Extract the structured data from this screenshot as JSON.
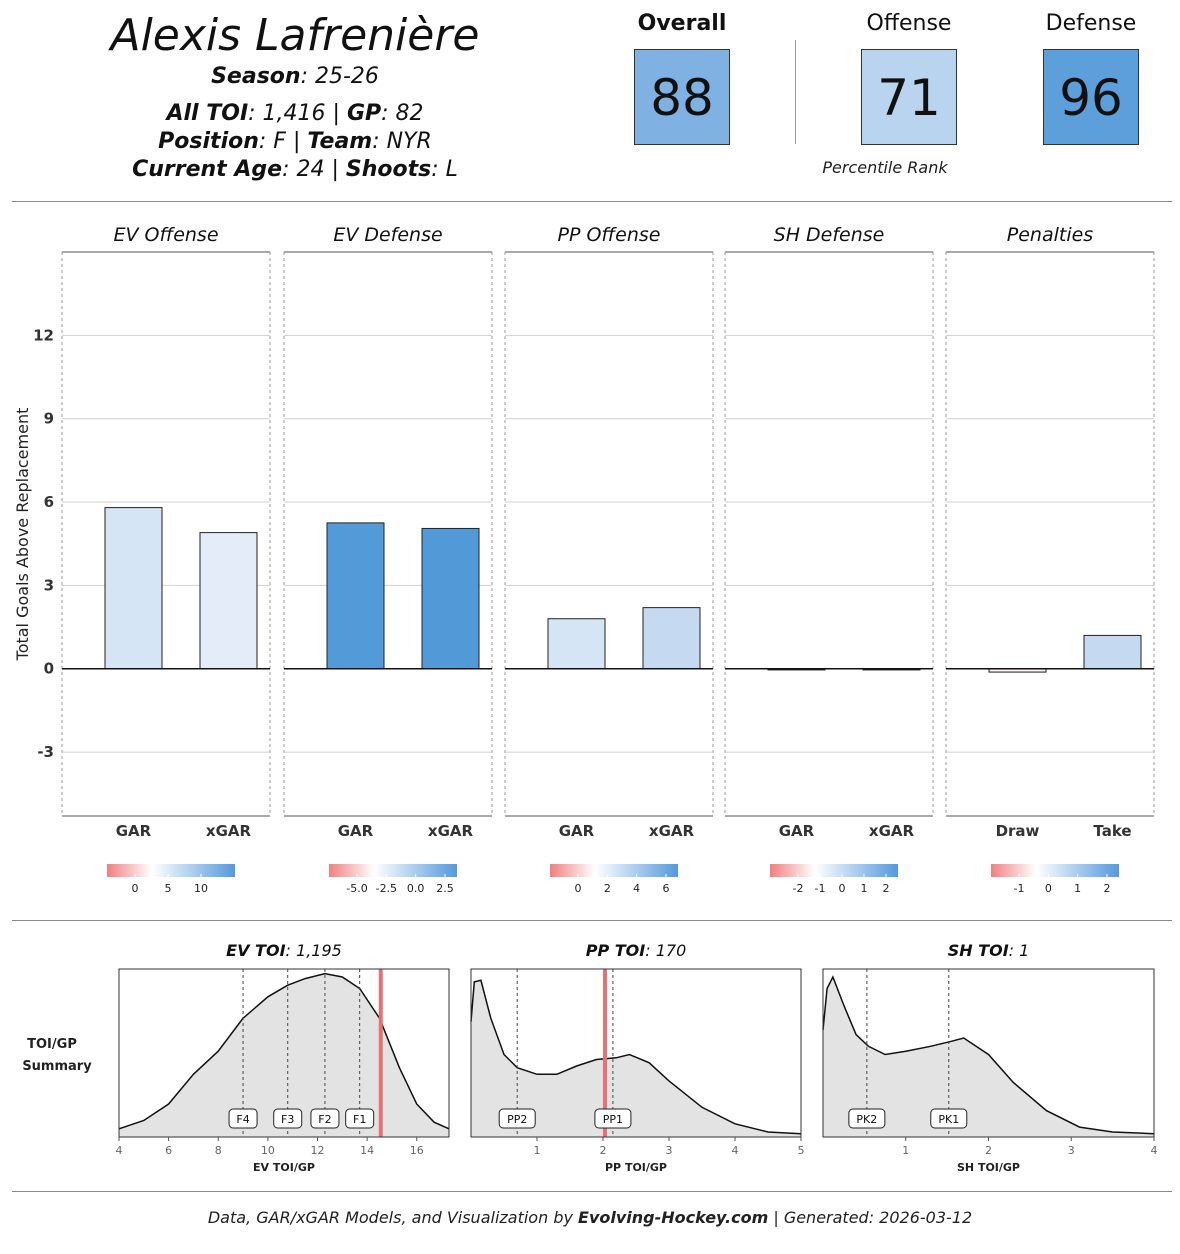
{
  "header": {
    "player_name": "Alexis Lafrenière",
    "season_label": "Season",
    "season_value": ": 25-26",
    "toi_label": "All TOI",
    "toi_value": ": 1,416 | ",
    "gp_label": "GP",
    "gp_value": ": 82",
    "position_label": "Position",
    "position_value": ": F | ",
    "team_label": "Team",
    "team_value": ": NYR",
    "age_label": "Current Age",
    "age_value": ": 24 | ",
    "shoots_label": "Shoots",
    "shoots_value": ": L"
  },
  "ratings": {
    "overall_label": "Overall",
    "overall_value": "88",
    "offense_label": "Offense",
    "offense_value": "71",
    "defense_label": "Defense",
    "defense_value": "96",
    "caption": "Percentile Rank",
    "colors": {
      "overall": "#7fb2e2",
      "offense": "#b8d4ef",
      "defense": "#5d9fdb"
    }
  },
  "chart_data": [
    {
      "type": "bar",
      "ylabel": "Total Goals Above Replacement",
      "ylim": [
        -5.3,
        15
      ],
      "yticks": [
        -3,
        0,
        3,
        6,
        9,
        12
      ],
      "grid": true,
      "panels": [
        {
          "title": "EV Offense",
          "categories": [
            "GAR",
            "xGAR"
          ],
          "values": [
            5.8,
            4.9
          ],
          "colors": [
            "#d6e5f6",
            "#e3ecf8"
          ],
          "legend": {
            "ticks": [
              "0",
              "5",
              "10"
            ]
          }
        },
        {
          "title": "EV Defense",
          "categories": [
            "GAR",
            "xGAR"
          ],
          "values": [
            5.25,
            5.05
          ],
          "colors": [
            "#529bd8",
            "#5299d8"
          ],
          "legend": {
            "ticks": [
              "-5.0",
              "-2.5",
              "0.0",
              "2.5"
            ]
          }
        },
        {
          "title": "PP Offense",
          "categories": [
            "GAR",
            "xGAR"
          ],
          "values": [
            1.8,
            2.2
          ],
          "colors": [
            "#d6e5f6",
            "#c5daf1"
          ],
          "legend": {
            "ticks": [
              "0",
              "2",
              "4",
              "6"
            ]
          }
        },
        {
          "title": "SH Defense",
          "categories": [
            "GAR",
            "xGAR"
          ],
          "values": [
            -0.02,
            -0.02
          ],
          "colors": [
            "#ffffff",
            "#ffffff"
          ],
          "legend": {
            "ticks": [
              "-2",
              "-1",
              "0",
              "1",
              "2"
            ]
          }
        },
        {
          "title": "Penalties",
          "categories": [
            "Draw",
            "Take"
          ],
          "values": [
            -0.12,
            1.2
          ],
          "colors": [
            "#fbeeee",
            "#c5daf1"
          ],
          "legend": {
            "ticks": [
              "-1",
              "0",
              "1",
              "2"
            ]
          }
        }
      ]
    },
    {
      "type": "area",
      "row_label_1": "TOI/GP",
      "row_label_2": "Summary",
      "panels": [
        {
          "title_bold": "EV TOI",
          "title_rest": ": 1,195",
          "xlabel": "EV TOI/GP",
          "xlim": [
            4,
            17.3
          ],
          "xticks": [
            "4",
            "6",
            "8",
            "10",
            "12",
            "14",
            "16"
          ],
          "xtick_values": [
            4,
            6,
            8,
            10,
            12,
            14,
            16
          ],
          "player_value": 14.55,
          "markers": [
            {
              "label": "F4",
              "x": 9.0
            },
            {
              "label": "F3",
              "x": 10.8
            },
            {
              "label": "F2",
              "x": 12.3
            },
            {
              "label": "F1",
              "x": 13.7
            }
          ],
          "density": [
            [
              4,
              0.05
            ],
            [
              5,
              0.1
            ],
            [
              6,
              0.2
            ],
            [
              7,
              0.38
            ],
            [
              8,
              0.52
            ],
            [
              9,
              0.72
            ],
            [
              10,
              0.85
            ],
            [
              10.8,
              0.92
            ],
            [
              11.5,
              0.96
            ],
            [
              12.3,
              0.99
            ],
            [
              13,
              0.97
            ],
            [
              13.7,
              0.9
            ],
            [
              14.5,
              0.72
            ],
            [
              15.3,
              0.42
            ],
            [
              16,
              0.2
            ],
            [
              16.7,
              0.09
            ],
            [
              17.3,
              0.05
            ]
          ]
        },
        {
          "title_bold": "PP TOI",
          "title_rest": ": 170",
          "xlabel": "PP TOI/GP",
          "xlim": [
            0,
            5
          ],
          "xticks": [
            "1",
            "2",
            "3",
            "4",
            "5"
          ],
          "xtick_values": [
            1,
            2,
            3,
            4,
            5
          ],
          "player_value": 2.03,
          "markers": [
            {
              "label": "PP2",
              "x": 0.7
            },
            {
              "label": "PP1",
              "x": 2.15
            }
          ],
          "density": [
            [
              0,
              0.7
            ],
            [
              0.05,
              0.94
            ],
            [
              0.15,
              0.95
            ],
            [
              0.3,
              0.72
            ],
            [
              0.5,
              0.5
            ],
            [
              0.7,
              0.42
            ],
            [
              1.0,
              0.38
            ],
            [
              1.3,
              0.38
            ],
            [
              1.6,
              0.43
            ],
            [
              1.9,
              0.47
            ],
            [
              2.2,
              0.48
            ],
            [
              2.4,
              0.5
            ],
            [
              2.7,
              0.45
            ],
            [
              3.0,
              0.34
            ],
            [
              3.5,
              0.18
            ],
            [
              4.0,
              0.08
            ],
            [
              4.5,
              0.03
            ],
            [
              5.0,
              0.02
            ]
          ]
        },
        {
          "title_bold": "SH TOI",
          "title_rest": ": 1",
          "xlabel": "SH TOI/GP",
          "xlim": [
            0,
            4
          ],
          "xticks": [
            "1",
            "2",
            "3",
            "4"
          ],
          "xtick_values": [
            1,
            2,
            3,
            4
          ],
          "player_value": null,
          "markers": [
            {
              "label": "PK2",
              "x": 0.53
            },
            {
              "label": "PK1",
              "x": 1.52
            }
          ],
          "density": [
            [
              0,
              0.65
            ],
            [
              0.05,
              0.9
            ],
            [
              0.12,
              0.97
            ],
            [
              0.25,
              0.8
            ],
            [
              0.4,
              0.62
            ],
            [
              0.55,
              0.55
            ],
            [
              0.75,
              0.5
            ],
            [
              1.0,
              0.52
            ],
            [
              1.3,
              0.55
            ],
            [
              1.55,
              0.58
            ],
            [
              1.7,
              0.6
            ],
            [
              2.0,
              0.5
            ],
            [
              2.3,
              0.33
            ],
            [
              2.7,
              0.16
            ],
            [
              3.1,
              0.06
            ],
            [
              3.5,
              0.03
            ],
            [
              4.0,
              0.02
            ]
          ]
        }
      ]
    }
  ],
  "footer": {
    "prefix": "Data, GAR/xGAR Models, and Visualization by ",
    "brand": "Evolving-Hockey.com",
    "suffix": " | Generated: 2026-03-12"
  }
}
